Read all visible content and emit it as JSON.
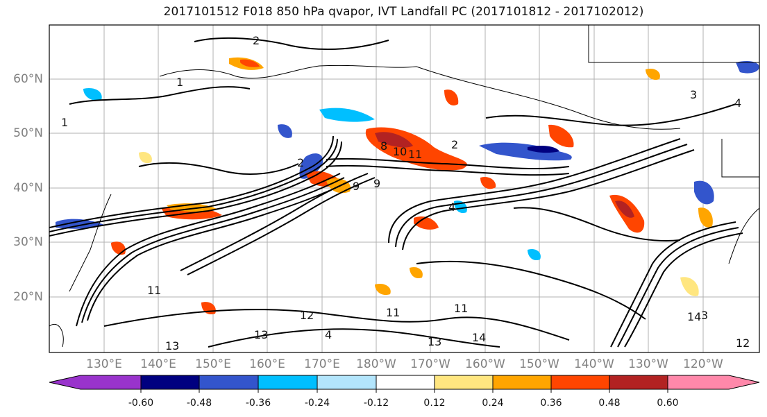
{
  "title": "2017101512 F018 850 hPa qvapor, IVT Landfall PC (2017101812 - 2017102012)",
  "map": {
    "lat_labels": [
      "60°N",
      "50°N",
      "40°N",
      "30°N",
      "20°N"
    ],
    "lon_labels": [
      "130°E",
      "140°E",
      "150°E",
      "160°E",
      "170°E",
      "180°W",
      "170°W",
      "160°W",
      "150°W",
      "140°W",
      "130°W",
      "120°W"
    ],
    "contour_labels": [
      "2",
      "3",
      "4",
      "1",
      "1",
      "8",
      "10",
      "11",
      "9",
      "4",
      "2",
      "2",
      "11",
      "12",
      "11",
      "13",
      "13",
      "14",
      "14",
      "13",
      "12",
      "11",
      "9",
      "4",
      "3"
    ]
  },
  "colorbar": {
    "tick_labels": [
      "-0.60",
      "-0.48",
      "-0.36",
      "-0.24",
      "-0.12",
      "0.12",
      "0.24",
      "0.36",
      "0.48",
      "0.60"
    ],
    "colors": [
      "#9933cc",
      "#000080",
      "#3355cc",
      "#00bfff",
      "#b3e5fc",
      "#ffffff",
      "#ffe680",
      "#ffa500",
      "#ff4500",
      "#b22222",
      "#ff88aa"
    ]
  }
}
